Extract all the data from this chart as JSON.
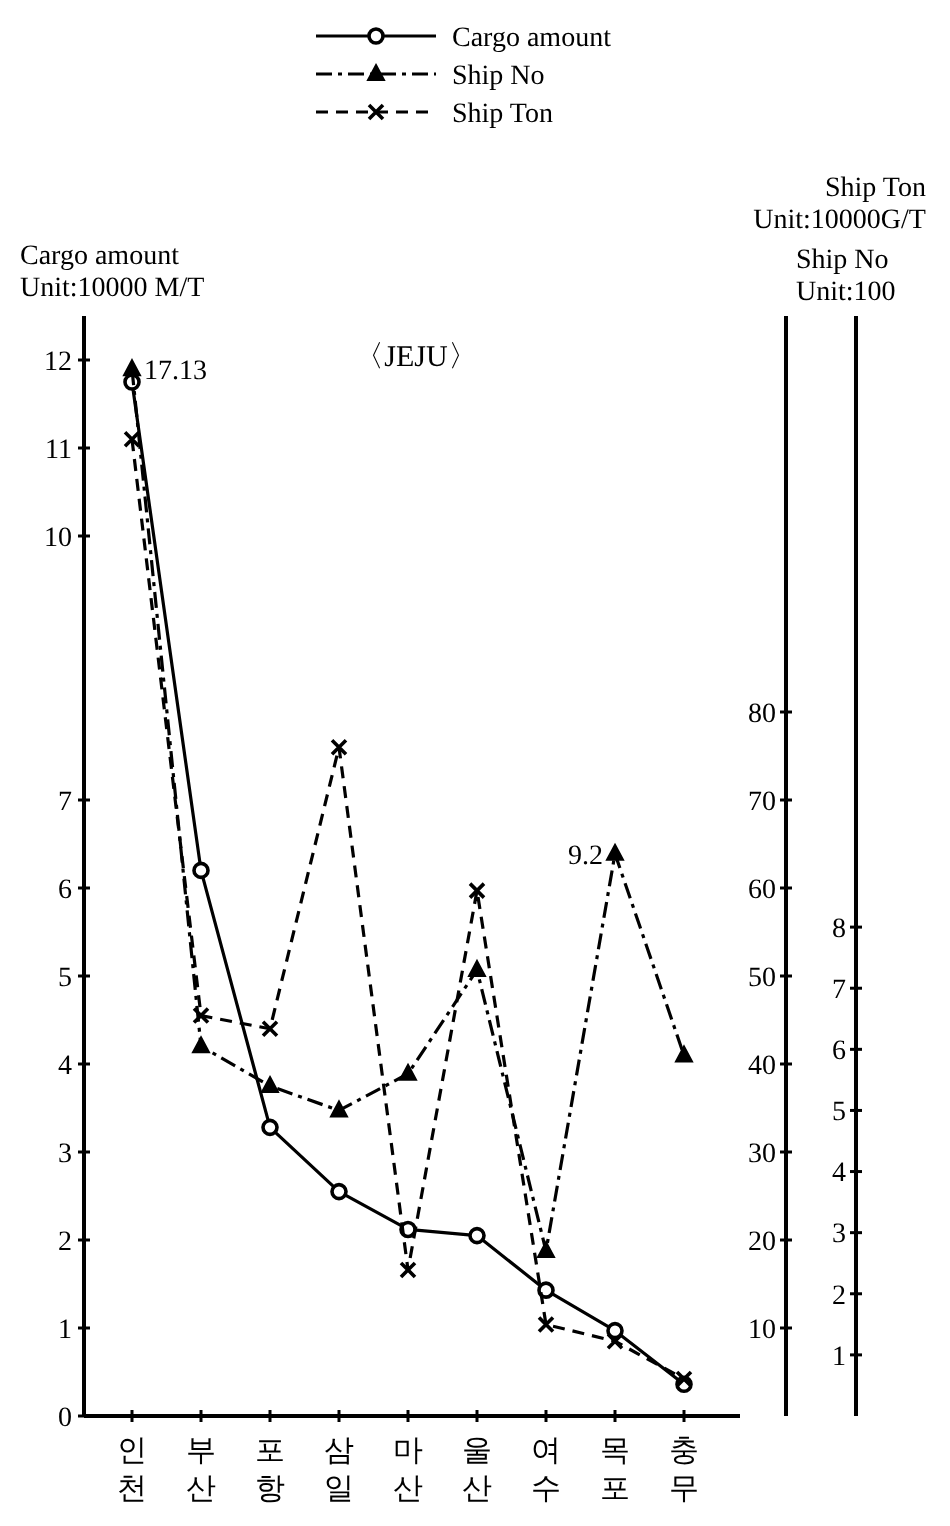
{
  "chart_data": {
    "type": "line",
    "title": "〈JEJU〉",
    "ylabel": "Cargo amount\nUnit:10000 M/T",
    "y2label": "Ship Ton\nUnit:10000G/T",
    "y3label": "Ship No\nUnit:100",
    "categories": [
      "인천",
      "부산",
      "포항",
      "삼일",
      "마산",
      "울산",
      "여수",
      "목포",
      "충무"
    ],
    "ylim": [
      0,
      12.5
    ],
    "yticks": [
      0,
      1,
      2,
      3,
      4,
      5,
      6,
      7,
      10,
      11,
      12
    ],
    "y2lim": [
      0,
      125
    ],
    "y2ticks": [
      10,
      20,
      30,
      40,
      50,
      60,
      70,
      80
    ],
    "y3lim": [
      0,
      18
    ],
    "y3ticks": [
      1,
      2,
      3,
      4,
      5,
      6,
      7,
      8
    ],
    "legend": "top",
    "grid": false,
    "series": [
      {
        "name": "Cargo amount",
        "color": "#000000",
        "marker": "circle",
        "line_style": "solid",
        "values": [
          11.75,
          6.2,
          3.28,
          2.55,
          2.12,
          2.05,
          1.43,
          0.97,
          0.36
        ]
      },
      {
        "name": "Ship No",
        "color": "#000000",
        "marker": "triangle",
        "line_style": "dashdot",
        "axis": "y3",
        "values": [
          17.13,
          6.05,
          5.4,
          5.0,
          5.6,
          7.3,
          2.7,
          9.2,
          5.9
        ],
        "value_labels": [
          "17.13",
          null,
          null,
          null,
          null,
          null,
          null,
          "9.2",
          null
        ]
      },
      {
        "name": "Ship Ton",
        "color": "#000000",
        "marker": "cross",
        "line_style": "dashed",
        "axis": "y2",
        "values": [
          111,
          45.5,
          44,
          76,
          16.6,
          59.7,
          10.4,
          8.5,
          4.2
        ]
      }
    ]
  }
}
